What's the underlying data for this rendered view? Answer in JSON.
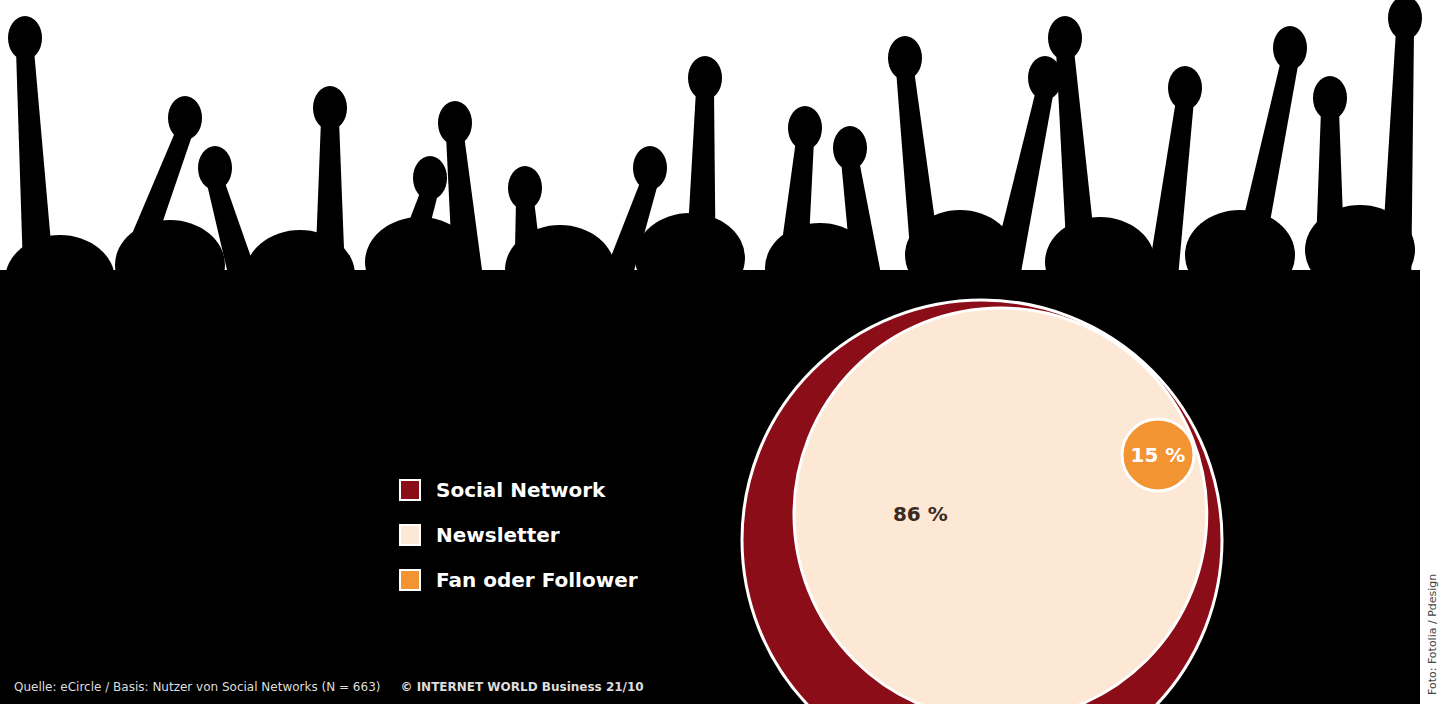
{
  "chart_data": {
    "type": "venn",
    "categories": [
      "Social Network",
      "Newsletter",
      "Fan oder Follower"
    ],
    "values": [
      100,
      86,
      15
    ],
    "value_labels": [
      null,
      "86 %",
      "15 %"
    ],
    "colors": [
      "#8b0d18",
      "#fce8d4",
      "#f39433"
    ],
    "data_labels": true,
    "legend": "left",
    "source": "Quelle: eCircle / Basis: Nutzer von Social Networks (N = 663)",
    "copyright": "© INTERNET WORLD Business 21/10",
    "credit": "Foto: Fotolia / Pdesign"
  }
}
